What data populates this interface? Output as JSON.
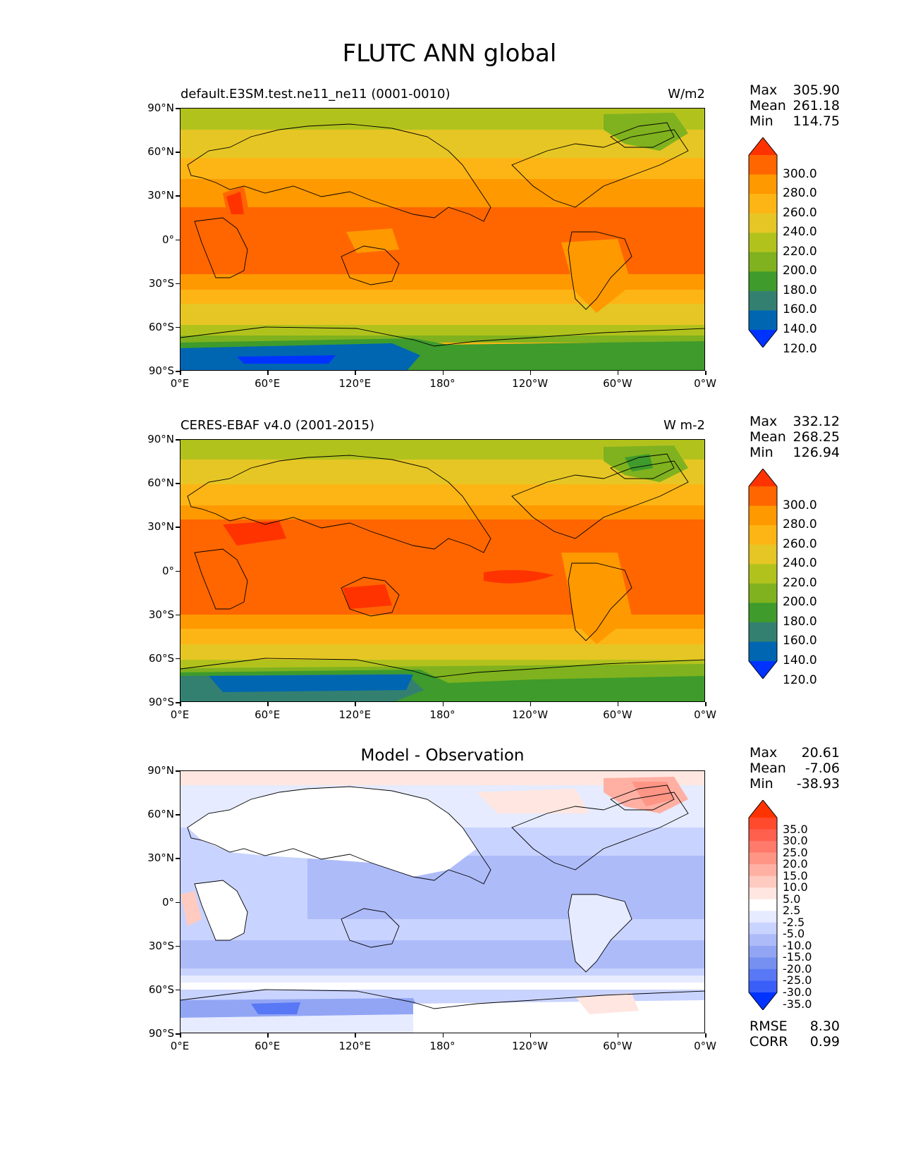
{
  "title": "FLUTC ANN global",
  "lat_ticks": [
    "90°N",
    "60°N",
    "30°N",
    "0°",
    "30°S",
    "60°S",
    "90°S"
  ],
  "lon_ticks": [
    "0°E",
    "60°E",
    "120°E",
    "180°",
    "120°W",
    "60°W",
    "0°W"
  ],
  "panels": [
    {
      "title_left": "default.E3SM.test.ne11_ne11 (0001-0010)",
      "title_center": "",
      "units": "W/m2",
      "stats": [
        {
          "label": "Max",
          "value": "305.90"
        },
        {
          "label": "Mean",
          "value": "261.18"
        },
        {
          "label": "Min",
          "value": "114.75"
        }
      ],
      "colorbar_labels": [
        "300.0",
        "280.0",
        "260.0",
        "240.0",
        "220.0",
        "200.0",
        "180.0",
        "160.0",
        "140.0",
        "120.0"
      ],
      "colorbar_colors": [
        "#ff3300",
        "#ff6600",
        "#ff9900",
        "#fdb515",
        "#e6c624",
        "#b2c21d",
        "#7fb21e",
        "#3e9b2c",
        "#348070",
        "#0066b2",
        "#0033ff"
      ],
      "footer": []
    },
    {
      "title_left": "CERES-EBAF v4.0 (2001-2015)",
      "title_center": "",
      "units": "W m-2",
      "stats": [
        {
          "label": "Max",
          "value": "332.12"
        },
        {
          "label": "Mean",
          "value": "268.25"
        },
        {
          "label": "Min",
          "value": "126.94"
        }
      ],
      "colorbar_labels": [
        "300.0",
        "280.0",
        "260.0",
        "240.0",
        "220.0",
        "200.0",
        "180.0",
        "160.0",
        "140.0",
        "120.0"
      ],
      "colorbar_colors": [
        "#ff3300",
        "#ff6600",
        "#ff9900",
        "#fdb515",
        "#e6c624",
        "#b2c21d",
        "#7fb21e",
        "#3e9b2c",
        "#348070",
        "#0066b2",
        "#0033ff"
      ],
      "footer": []
    },
    {
      "title_left": "",
      "title_center": "Model - Observation",
      "units": "",
      "stats": [
        {
          "label": "Max",
          "value": "20.61"
        },
        {
          "label": "Mean",
          "value": "-7.06"
        },
        {
          "label": "Min",
          "value": "-38.93"
        }
      ],
      "colorbar_labels": [
        "35.0",
        "30.0",
        "25.0",
        "20.0",
        "15.0",
        "10.0",
        "5.0",
        "2.5",
        "-2.5",
        "-5.0",
        "-10.0",
        "-15.0",
        "-20.0",
        "-25.0",
        "-30.0",
        "-35.0"
      ],
      "colorbar_colors": [
        "#ff3300",
        "#ff4a2e",
        "#ff5f4d",
        "#ff7a6b",
        "#ff9585",
        "#ffb0a3",
        "#ffcac0",
        "#ffe6e0",
        "#ffffff",
        "#e6ebff",
        "#c9d3ff",
        "#adbbf9",
        "#92a5f4",
        "#7590f0",
        "#5878f5",
        "#3a5ff8",
        "#0033ff"
      ],
      "footer": [
        {
          "label": "RMSE",
          "value": "8.30"
        },
        {
          "label": "CORR",
          "value": "0.99"
        }
      ]
    }
  ]
}
